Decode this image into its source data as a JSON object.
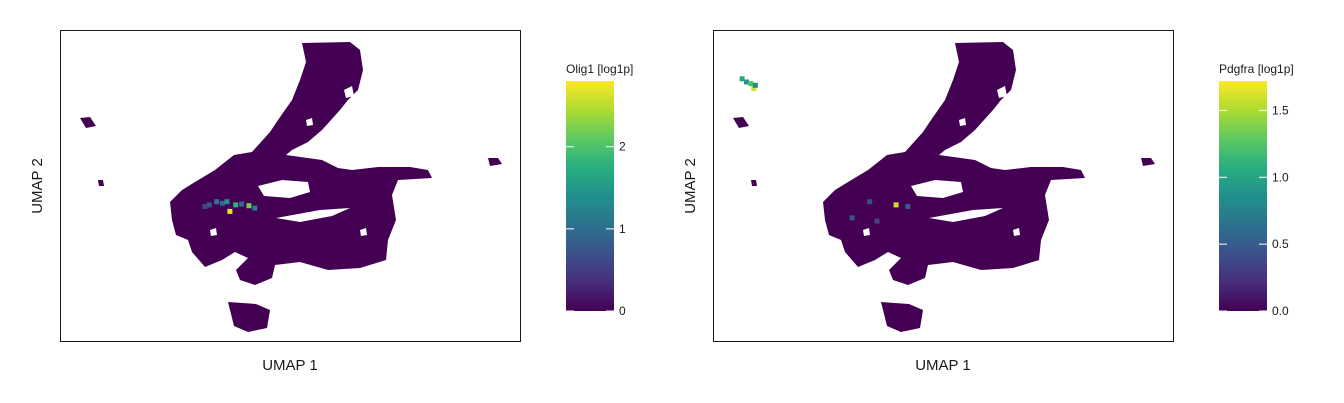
{
  "chart_data": [
    {
      "type": "scatter",
      "plot": "umap-hexbin",
      "xlabel": "UMAP 1",
      "ylabel": "UMAP 2",
      "colorbar": {
        "title": "Olig1 [log1p]",
        "range": [
          0,
          2.8
        ],
        "ticks": [
          "0",
          "1",
          "2"
        ],
        "tick_values": [
          0,
          1,
          2
        ],
        "colormap": "viridis"
      },
      "highlights": [
        {
          "x": -6.5,
          "y": -1.2,
          "value": 0.7
        },
        {
          "x": -6.0,
          "y": -1.0,
          "value": 1.1
        },
        {
          "x": -5.6,
          "y": -1.1,
          "value": 0.9
        },
        {
          "x": -5.3,
          "y": -1.0,
          "value": 1.4
        },
        {
          "x": -5.1,
          "y": -1.6,
          "value": 2.7
        },
        {
          "x": -4.7,
          "y": -1.2,
          "value": 1.8
        },
        {
          "x": -4.3,
          "y": -1.15,
          "value": 1.0
        },
        {
          "x": -3.8,
          "y": -1.25,
          "value": 2.2
        },
        {
          "x": -3.4,
          "y": -1.4,
          "value": 1.2
        },
        {
          "x": -6.8,
          "y": -1.3,
          "value": 0.6
        }
      ]
    },
    {
      "type": "scatter",
      "plot": "umap-hexbin",
      "xlabel": "UMAP 1",
      "ylabel": "UMAP 2",
      "colorbar": {
        "title": "Pdgfra [log1p]",
        "range": [
          0,
          1.72
        ],
        "ticks": [
          "0.0",
          "0.5",
          "1.0",
          "1.5"
        ],
        "tick_values": [
          0,
          0.5,
          1.0,
          1.5
        ],
        "colormap": "viridis"
      },
      "highlights": [
        {
          "x": -14.7,
          "y": 6.6,
          "value": 1.0
        },
        {
          "x": -14.4,
          "y": 6.4,
          "value": 0.9
        },
        {
          "x": -14.1,
          "y": 6.3,
          "value": 1.2
        },
        {
          "x": -13.9,
          "y": 6.0,
          "value": 1.6
        },
        {
          "x": -13.8,
          "y": 6.2,
          "value": 0.8
        },
        {
          "x": -4.2,
          "y": -1.2,
          "value": 1.6
        },
        {
          "x": -3.4,
          "y": -1.3,
          "value": 0.5
        },
        {
          "x": -6.0,
          "y": -1.0,
          "value": 0.4
        },
        {
          "x": -7.2,
          "y": -2.0,
          "value": 0.45
        },
        {
          "x": -5.5,
          "y": -2.2,
          "value": 0.35
        }
      ]
    }
  ]
}
